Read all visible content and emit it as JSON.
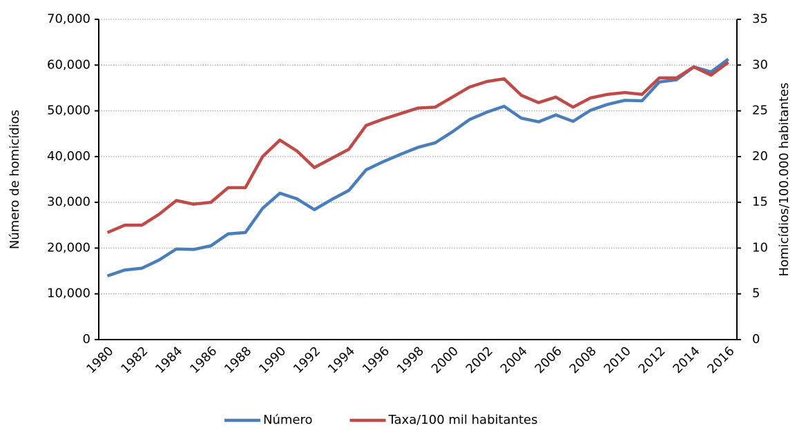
{
  "chart_data": {
    "type": "line",
    "categories": [
      "1980",
      null,
      "1982",
      null,
      "1984",
      null,
      "1986",
      null,
      "1988",
      null,
      "1990",
      null,
      "1992",
      null,
      "1994",
      null,
      "1996",
      null,
      "1998",
      null,
      "2000",
      null,
      "2002",
      null,
      "2004",
      null,
      "2006",
      null,
      "2008",
      null,
      "2010",
      null,
      "2012",
      null,
      "2014",
      null,
      "2016"
    ],
    "y_label": "Número de homicídios",
    "y2_label": "Homicídios/100.000 habitantes",
    "ylim": [
      0,
      70000
    ],
    "yticks": [
      0,
      {
        "value": 10000,
        "label": "10,000"
      },
      {
        "value": 20000,
        "label": "20,000"
      },
      {
        "value": 30000,
        "label": "30,000"
      },
      {
        "value": 40000,
        "label": "40,000"
      },
      {
        "value": 50000,
        "label": "50,000"
      },
      {
        "value": 60000,
        "label": "60,000"
      },
      {
        "value": 70000,
        "label": "70,000"
      }
    ],
    "y2lim": [
      0,
      35
    ],
    "y2ticks": [
      0,
      5,
      10,
      15,
      20,
      25,
      30,
      35
    ],
    "grid": true,
    "legend": "bottom",
    "series": [
      {
        "name": "Número",
        "color": "#4a7ebb",
        "axis": "y",
        "values": [
          13910,
          15200,
          15600,
          17400,
          19800,
          19700,
          20500,
          23100,
          23400,
          28700,
          32000,
          30750,
          28400,
          30600,
          32600,
          37100,
          38900,
          40500,
          42000,
          43000,
          45400,
          48100,
          49700,
          51000,
          48400,
          47600,
          49100,
          47700,
          50100,
          51400,
          52300,
          52200,
          56300,
          56800,
          59600,
          58500,
          61300
        ]
      },
      {
        "name": "Taxa/100 mil habitantes",
        "color": "#be4b48",
        "axis": "y2",
        "values": [
          11.7,
          12.5,
          12.5,
          13.7,
          15.2,
          14.8,
          15.0,
          16.6,
          16.6,
          20.0,
          21.8,
          20.6,
          18.8,
          19.8,
          20.8,
          23.4,
          24.1,
          24.7,
          25.3,
          25.4,
          26.5,
          27.6,
          28.2,
          28.5,
          26.7,
          25.9,
          26.5,
          25.4,
          26.4,
          26.8,
          27.0,
          26.8,
          28.6,
          28.6,
          29.8,
          28.9,
          30.3
        ]
      }
    ]
  }
}
